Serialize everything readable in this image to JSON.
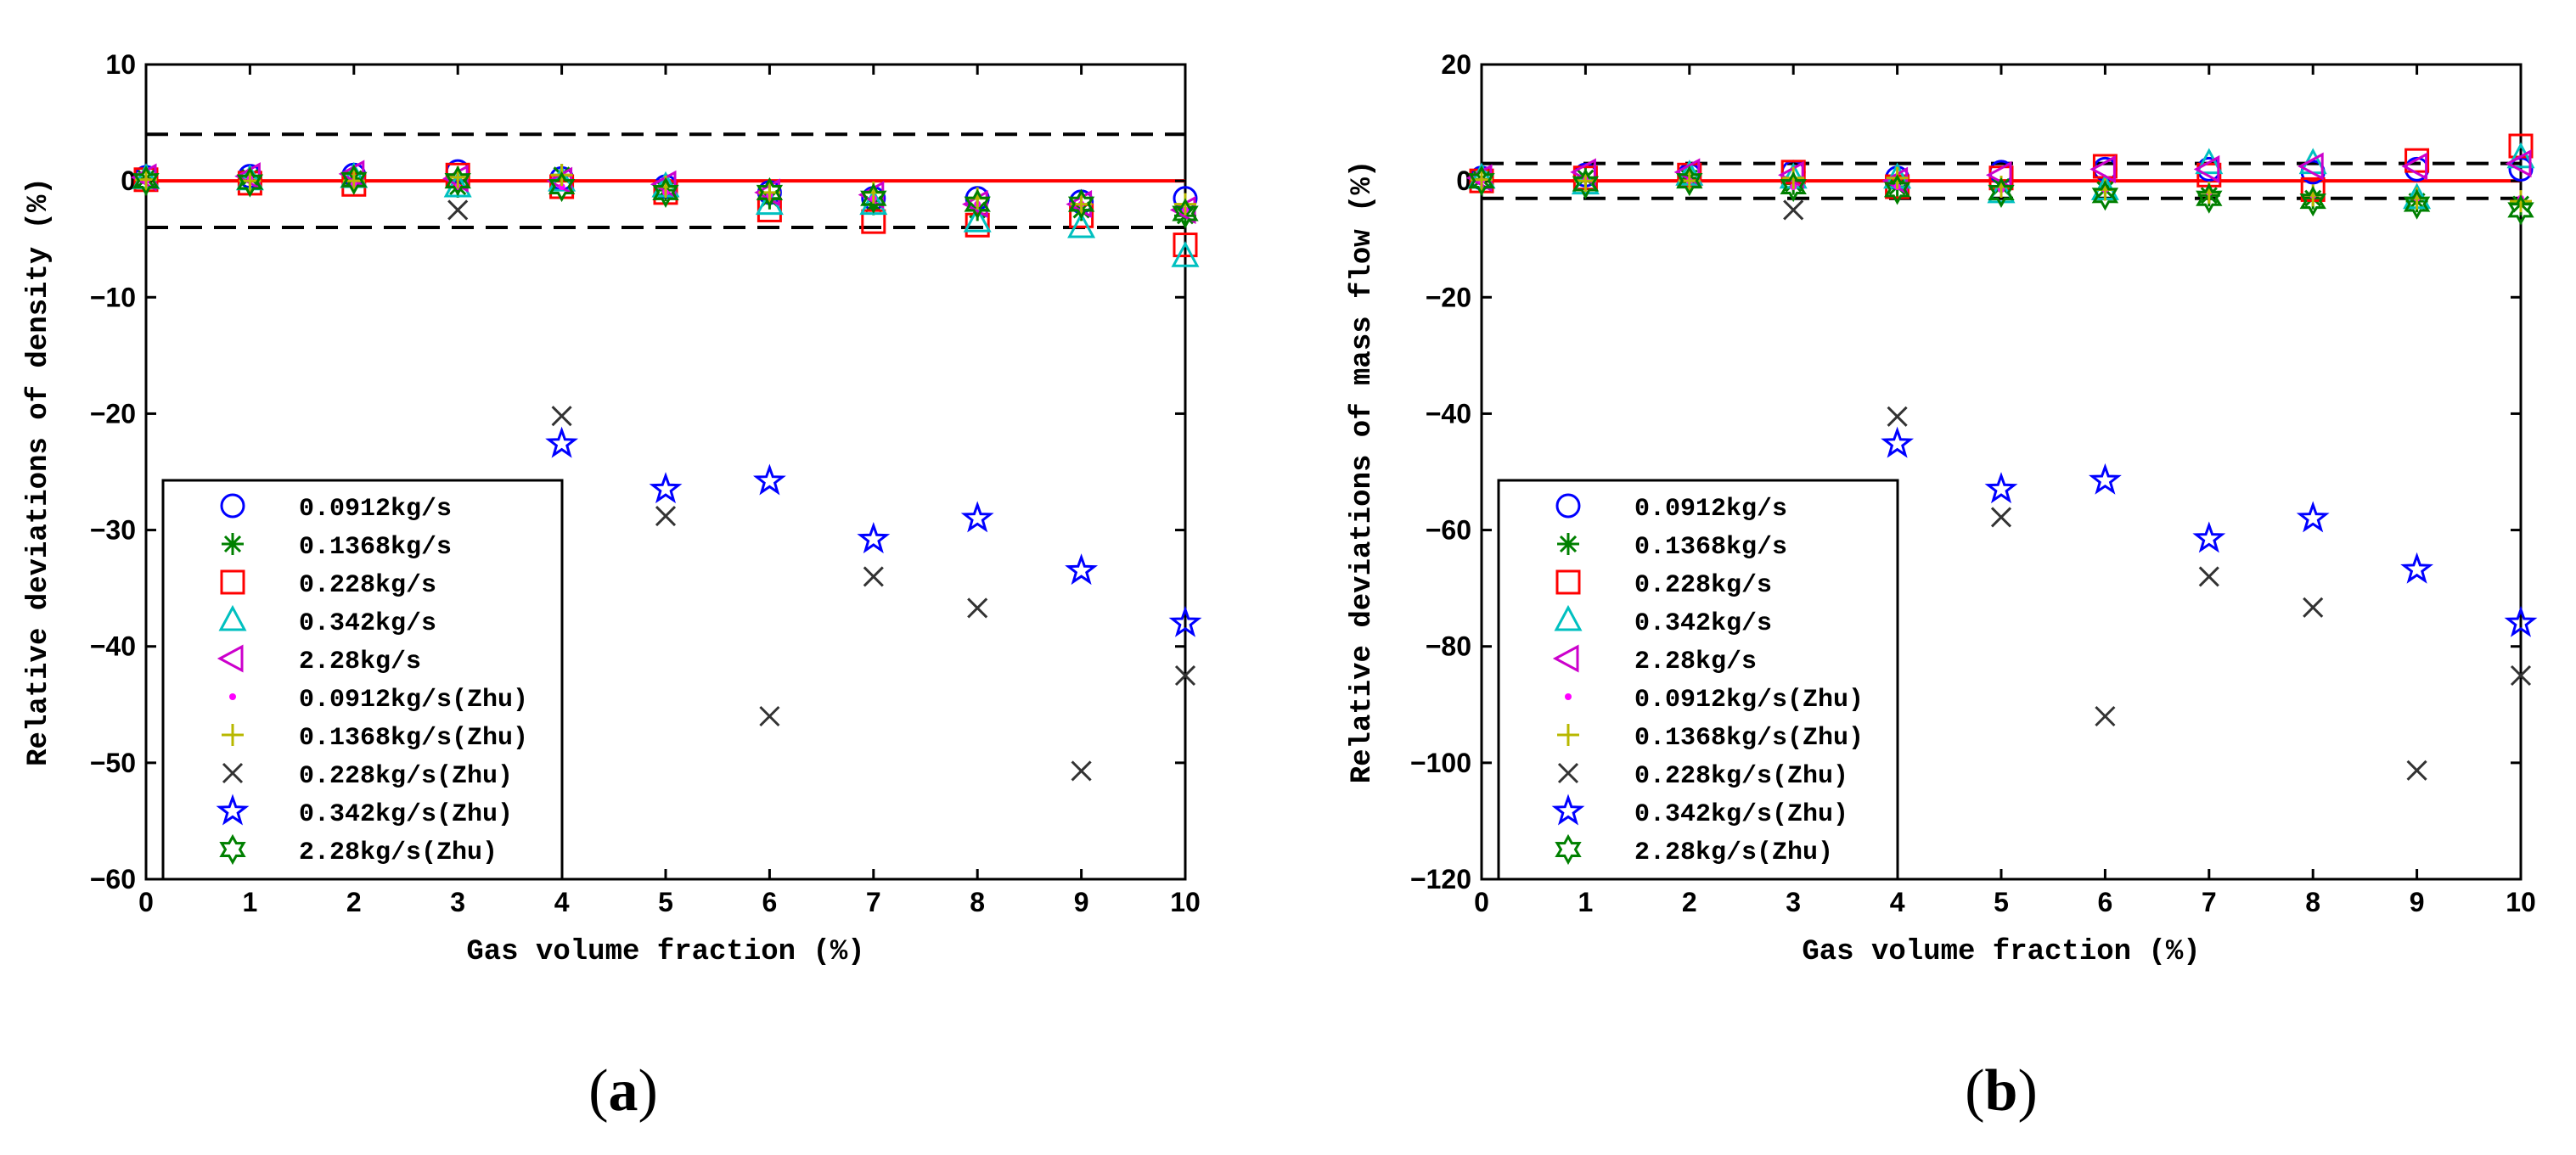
{
  "chart_data": [
    {
      "type": "scatter",
      "panel": "(a)",
      "caption_letter": "a",
      "xlabel": "Gas volume fraction (%)",
      "ylabel": "Relative deviations of density (%)",
      "xlim": [
        0,
        10
      ],
      "ylim": [
        -60,
        10
      ],
      "xticks": [
        0,
        1,
        2,
        3,
        4,
        5,
        6,
        7,
        8,
        9,
        10
      ],
      "yticks": [
        10,
        0,
        -10,
        -20,
        -30,
        -40,
        -50,
        -60
      ],
      "reference_lines": [
        {
          "y": 0,
          "style": "solid",
          "color": "#ff0000"
        },
        {
          "y": 4,
          "style": "dashed",
          "color": "#000000"
        },
        {
          "y": -4,
          "style": "dashed",
          "color": "#000000"
        }
      ],
      "legend_position": "lower-left",
      "series": [
        {
          "name": "0.0912kg/s",
          "marker": "circle",
          "color": "#0000ff",
          "x": [
            0,
            1,
            2,
            3,
            4,
            5,
            6,
            7,
            8,
            9,
            10
          ],
          "values": [
            0.3,
            0.4,
            0.5,
            0.8,
            0.2,
            -0.5,
            -1.0,
            -1.5,
            -1.5,
            -1.8,
            -1.5
          ]
        },
        {
          "name": "0.1368kg/s",
          "marker": "asterisk",
          "color": "#008000",
          "x": [
            0,
            1,
            2,
            3,
            4,
            5,
            6,
            7,
            8,
            9,
            10
          ],
          "values": [
            0.2,
            0.3,
            0.2,
            -0.5,
            0.5,
            -0.8,
            -1.5,
            -2.0,
            -2.5,
            -2.5,
            -3.0
          ]
        },
        {
          "name": "0.228kg/s",
          "marker": "square",
          "color": "#ff0000",
          "x": [
            0,
            1,
            2,
            3,
            4,
            5,
            6,
            7,
            8,
            9,
            10
          ],
          "values": [
            0.1,
            -0.2,
            -0.3,
            0.5,
            -0.5,
            -1.0,
            -2.5,
            -3.5,
            -3.8,
            -3.0,
            -5.5
          ]
        },
        {
          "name": "0.342kg/s",
          "marker": "triangle-up",
          "color": "#00c0c0",
          "x": [
            0,
            1,
            2,
            3,
            4,
            5,
            6,
            7,
            8,
            9,
            10
          ],
          "values": [
            0.2,
            0.1,
            0.3,
            -0.5,
            0.0,
            -0.5,
            -2.0,
            -2.0,
            -3.5,
            -4.0,
            -6.5
          ]
        },
        {
          "name": "2.28kg/s",
          "marker": "triangle-left",
          "color": "#cc00cc",
          "x": [
            0,
            1,
            2,
            3,
            4,
            5,
            6,
            7,
            8,
            9,
            10
          ],
          "values": [
            0.3,
            0.4,
            0.6,
            0.2,
            0.0,
            -0.3,
            -1.0,
            -1.2,
            -2.0,
            -2.0,
            -2.5
          ]
        },
        {
          "name": "0.0912kg/s(Zhu)",
          "marker": "dot",
          "color": "#ff00ff",
          "x": [
            0,
            1,
            2,
            3,
            4,
            5,
            6,
            7,
            8,
            9,
            10
          ],
          "values": [
            0.0,
            0.2,
            -0.3,
            -0.5,
            -0.5,
            -1.0,
            -1.2,
            -1.5,
            -2.0,
            -2.0,
            -2.5
          ]
        },
        {
          "name": "0.1368kg/s(Zhu)",
          "marker": "plus",
          "color": "#b8b800",
          "x": [
            0,
            1,
            2,
            3,
            4,
            5,
            6,
            7,
            8,
            9,
            10
          ],
          "values": [
            0.1,
            0.0,
            0.0,
            0.3,
            0.5,
            -0.5,
            -1.0,
            -1.0,
            -1.5,
            -2.0,
            -2.0
          ]
        },
        {
          "name": "0.228kg/s(Zhu)",
          "marker": "x",
          "color": "#333333",
          "x": [
            3,
            4,
            5,
            6,
            7,
            8,
            9,
            10
          ],
          "values": [
            -2.5,
            -20.2,
            -28.8,
            -46.0,
            -34.0,
            -36.7,
            -50.7,
            -42.5
          ]
        },
        {
          "name": "0.342kg/s(Zhu)",
          "marker": "star",
          "color": "#0000ff",
          "x": [
            4,
            5,
            6,
            7,
            8,
            9,
            10
          ],
          "values": [
            -22.6,
            -26.5,
            -25.8,
            -30.8,
            -29.0,
            -33.5,
            -38.0
          ]
        },
        {
          "name": "2.28kg/s(Zhu)",
          "marker": "hexagram",
          "color": "#008000",
          "x": [
            0,
            1,
            2,
            3,
            4,
            5,
            6,
            7,
            8,
            9,
            10
          ],
          "values": [
            0.0,
            -0.1,
            0.1,
            0.0,
            -0.5,
            -1.0,
            -1.0,
            -1.5,
            -2.0,
            -2.0,
            -2.8
          ]
        }
      ]
    },
    {
      "type": "scatter",
      "panel": "(b)",
      "caption_letter": "b",
      "xlabel": "Gas volume fraction (%)",
      "ylabel": "Relative deviations of mass flow (%)",
      "xlim": [
        0,
        10
      ],
      "ylim": [
        -120,
        20
      ],
      "xticks": [
        0,
        1,
        2,
        3,
        4,
        5,
        6,
        7,
        8,
        9,
        10
      ],
      "yticks": [
        20,
        0,
        -20,
        -40,
        -60,
        -80,
        -100,
        -120
      ],
      "reference_lines": [
        {
          "y": 0,
          "style": "solid",
          "color": "#ff0000"
        },
        {
          "y": 3,
          "style": "dashed",
          "color": "#000000"
        },
        {
          "y": -3,
          "style": "dashed",
          "color": "#000000"
        }
      ],
      "legend_position": "lower-left",
      "series": [
        {
          "name": "0.0912kg/s",
          "marker": "circle",
          "color": "#0000ff",
          "x": [
            0,
            1,
            2,
            3,
            4,
            5,
            6,
            7,
            8,
            9,
            10
          ],
          "values": [
            0.5,
            1.0,
            1.0,
            1.5,
            0.5,
            1.5,
            2.0,
            2.0,
            1.5,
            2.0,
            2.0
          ]
        },
        {
          "name": "0.1368kg/s",
          "marker": "asterisk",
          "color": "#008000",
          "x": [
            0,
            1,
            2,
            3,
            4,
            5,
            6,
            7,
            8,
            9,
            10
          ],
          "values": [
            0.3,
            0.5,
            0.5,
            -0.5,
            -1.0,
            -1.0,
            -1.5,
            -2.5,
            -3.0,
            -3.5,
            -4.0
          ]
        },
        {
          "name": "0.228kg/s",
          "marker": "square",
          "color": "#ff0000",
          "x": [
            0,
            1,
            2,
            3,
            4,
            5,
            6,
            7,
            8,
            9,
            10
          ],
          "values": [
            0.0,
            0.5,
            1.0,
            1.5,
            -1.0,
            0.5,
            2.5,
            1.0,
            -1.5,
            3.5,
            6.0
          ]
        },
        {
          "name": "0.342kg/s",
          "marker": "triangle-up",
          "color": "#00c0c0",
          "x": [
            0,
            1,
            2,
            3,
            4,
            5,
            6,
            7,
            8,
            9,
            10
          ],
          "values": [
            0.5,
            -0.5,
            1.0,
            0.5,
            0.5,
            -2.0,
            -1.5,
            3.0,
            3.0,
            -3.0,
            4.0
          ]
        },
        {
          "name": "2.28kg/s",
          "marker": "triangle-left",
          "color": "#cc00cc",
          "x": [
            0,
            1,
            2,
            3,
            4,
            5,
            6,
            7,
            8,
            9,
            10
          ],
          "values": [
            0.5,
            1.5,
            1.5,
            1.0,
            0.0,
            1.0,
            2.0,
            2.0,
            2.5,
            2.5,
            3.0
          ]
        },
        {
          "name": "0.0912kg/s(Zhu)",
          "marker": "dot",
          "color": "#ff00ff",
          "x": [
            0,
            1,
            2,
            3,
            4,
            5,
            6,
            7,
            8,
            9,
            10
          ],
          "values": [
            0.0,
            0.5,
            0.0,
            -1.0,
            -1.0,
            -1.5,
            -1.5,
            -2.0,
            -2.5,
            -3.0,
            -3.0
          ]
        },
        {
          "name": "0.1368kg/s(Zhu)",
          "marker": "plus",
          "color": "#b8b800",
          "x": [
            0,
            1,
            2,
            3,
            4,
            5,
            6,
            7,
            8,
            9,
            10
          ],
          "values": [
            0.2,
            0.0,
            0.0,
            0.5,
            0.5,
            -1.0,
            -1.5,
            -2.0,
            -2.5,
            -3.0,
            -3.5
          ]
        },
        {
          "name": "0.228kg/s(Zhu)",
          "marker": "x",
          "color": "#333333",
          "x": [
            3,
            4,
            5,
            6,
            7,
            8,
            9,
            10
          ],
          "values": [
            -5.0,
            -40.5,
            -57.8,
            -92.0,
            -68.0,
            -73.3,
            -101.3,
            -85.0
          ]
        },
        {
          "name": "0.342kg/s(Zhu)",
          "marker": "star",
          "color": "#0000ff",
          "x": [
            4,
            5,
            6,
            7,
            8,
            9,
            10
          ],
          "values": [
            -45.2,
            -53.0,
            -51.5,
            -61.5,
            -58.0,
            -66.8,
            -76.0
          ]
        },
        {
          "name": "2.28kg/s(Zhu)",
          "marker": "hexagram",
          "color": "#008000",
          "x": [
            0,
            1,
            2,
            3,
            4,
            5,
            6,
            7,
            8,
            9,
            10
          ],
          "values": [
            0.0,
            -0.5,
            0.0,
            -1.0,
            -1.5,
            -2.0,
            -2.5,
            -3.0,
            -3.5,
            -4.0,
            -5.0
          ]
        }
      ]
    }
  ]
}
